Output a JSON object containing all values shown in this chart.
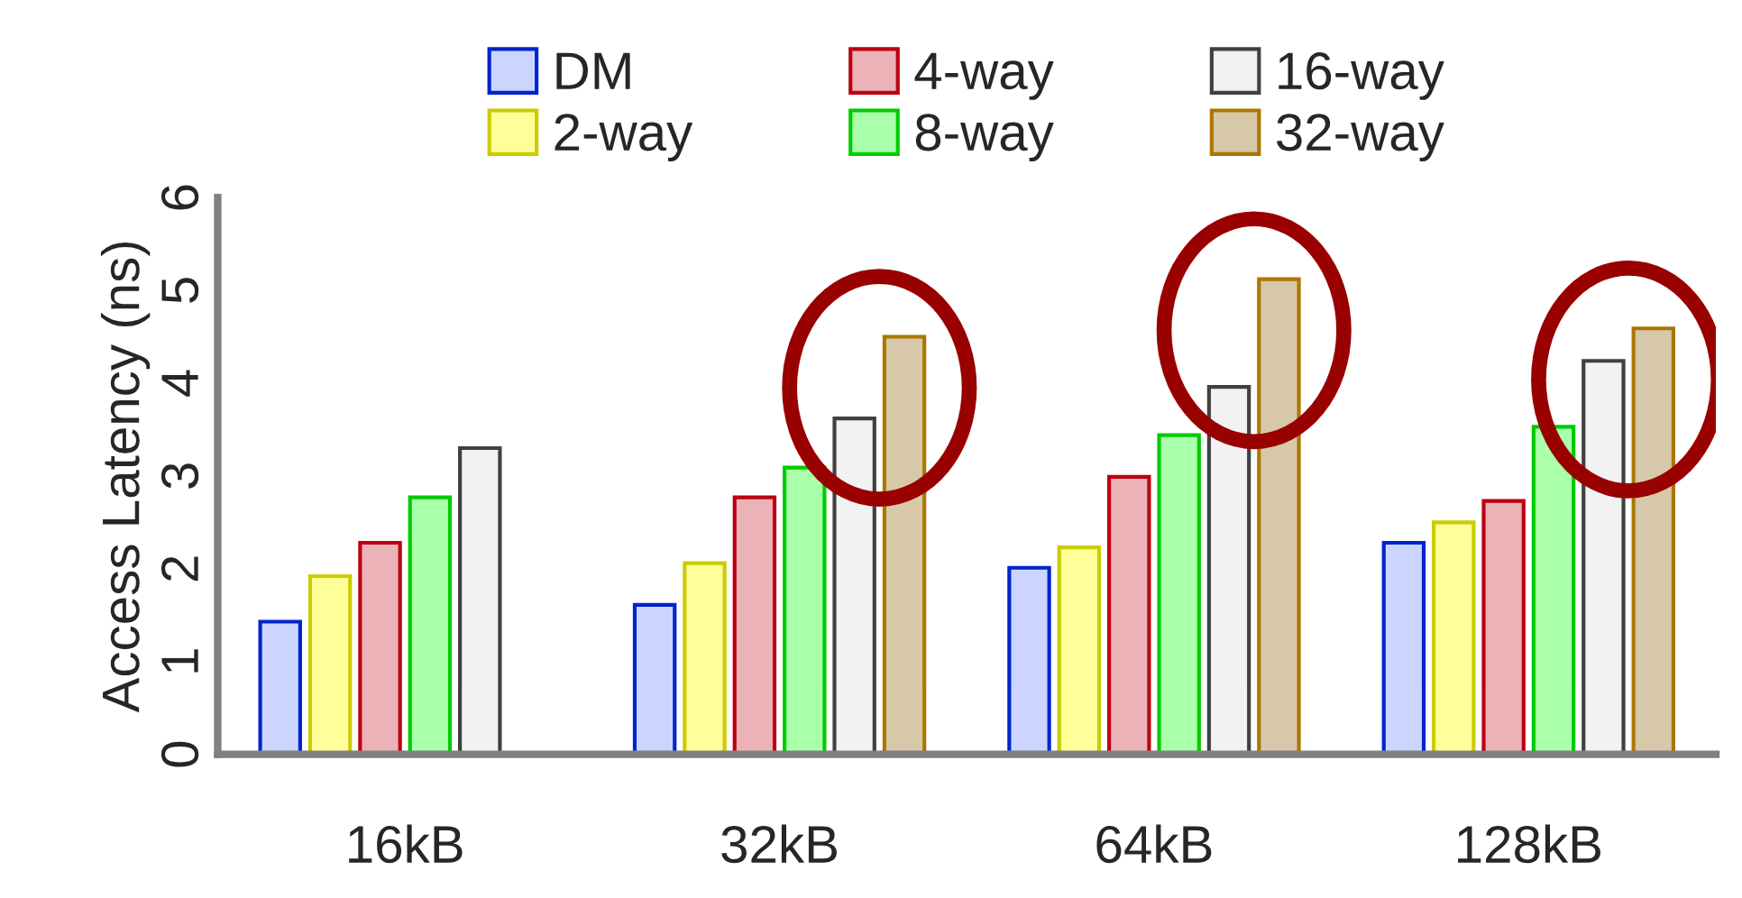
{
  "chart_data": {
    "type": "bar",
    "ylabel": "Access Latency (ns)",
    "categories": [
      "16kB",
      "32kB",
      "64kB",
      "128kB"
    ],
    "series": [
      {
        "name": "DM",
        "color": "#ccd5ff",
        "values": [
          1.43,
          1.61,
          2.01,
          2.28
        ]
      },
      {
        "name": "2-way",
        "color": "#ffff99",
        "values": [
          1.92,
          2.06,
          2.23,
          2.5
        ]
      },
      {
        "name": "4-way",
        "color": "#ebb3b8",
        "values": [
          2.28,
          2.77,
          2.99,
          2.73
        ]
      },
      {
        "name": "8-way",
        "color": "#aaffaa",
        "values": [
          2.77,
          3.09,
          3.44,
          3.53
        ]
      },
      {
        "name": "16-way",
        "color": "#f2f2f2",
        "values": [
          3.3,
          3.62,
          3.96,
          4.24
        ]
      },
      {
        "name": "32-way",
        "color": "#d6c8a8",
        "values": [
          null,
          4.5,
          5.12,
          4.59
        ]
      }
    ],
    "ylim": [
      0,
      6
    ],
    "yticks": [
      0,
      1,
      2,
      3,
      4,
      5,
      6
    ],
    "grid": false,
    "legend": "top"
  }
}
